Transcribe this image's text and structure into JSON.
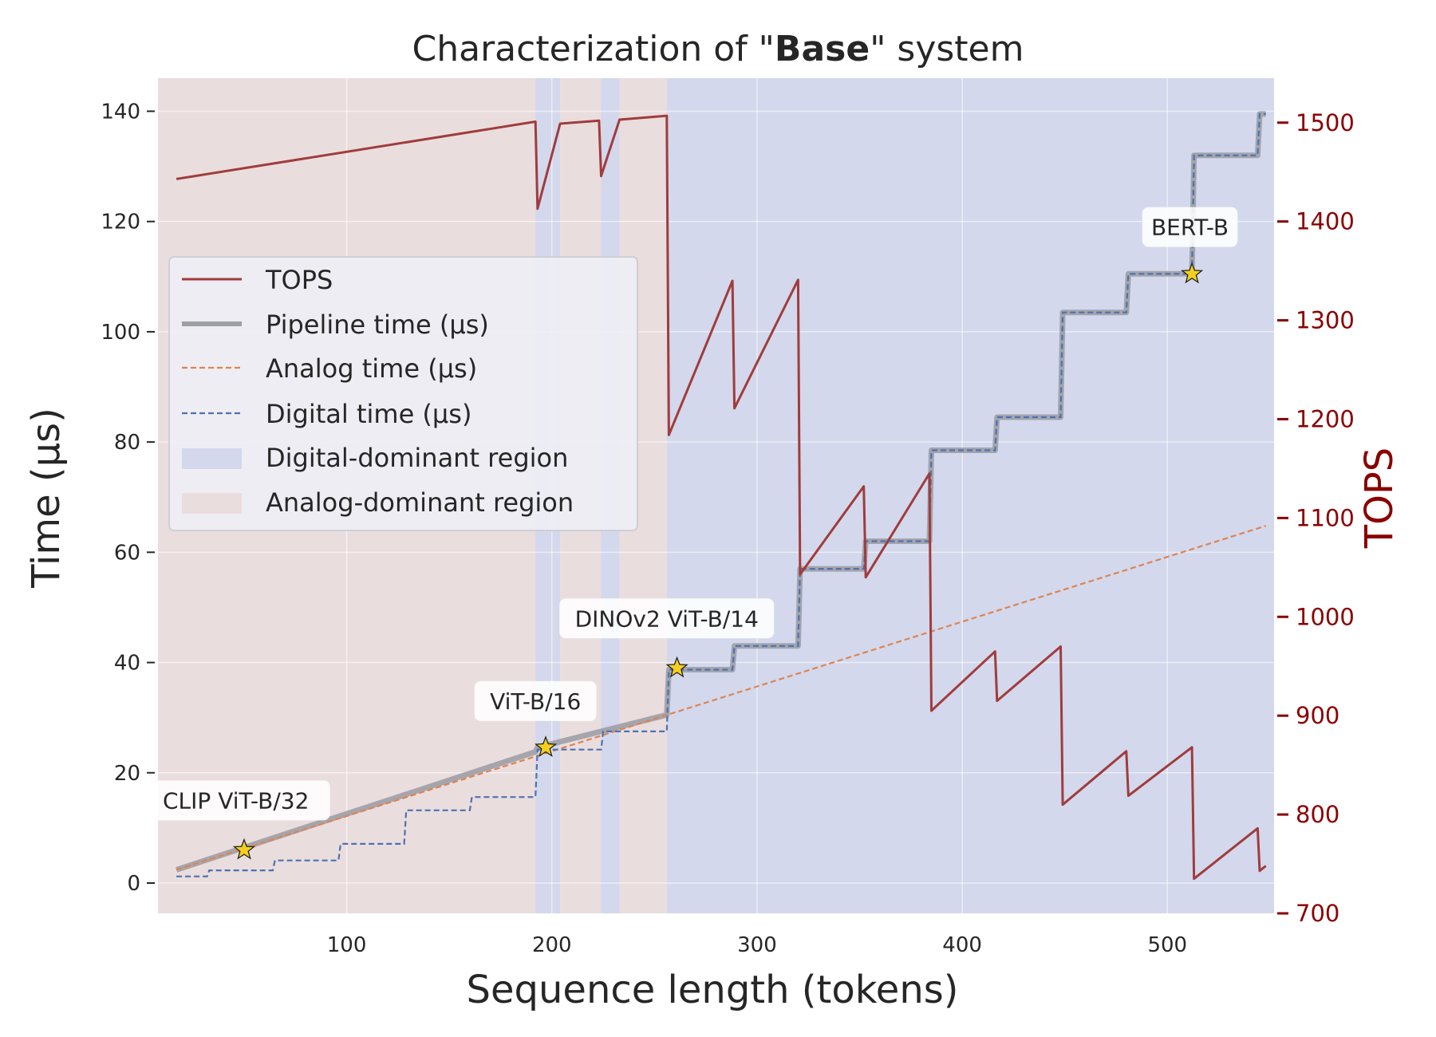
{
  "chart_data": {
    "type": "line",
    "title_prefix": "Characterization of \"",
    "title_bold": "Base",
    "title_suffix": "\" system",
    "xlabel": "Sequence length (tokens)",
    "ylabel": "Time (µs)",
    "y2label": "TOPS",
    "xlim": [
      8,
      552
    ],
    "ylim": [
      -5.5,
      146
    ],
    "y2lim": [
      700,
      1545
    ],
    "xticks": [
      "100",
      "200",
      "300",
      "400",
      "500"
    ],
    "xtick_values": [
      100,
      200,
      300,
      400,
      500
    ],
    "yticks": [
      "0",
      "20",
      "40",
      "60",
      "80",
      "100",
      "120",
      "140"
    ],
    "ytick_values": [
      0,
      20,
      40,
      60,
      80,
      100,
      120,
      140
    ],
    "y2ticks": [
      "700",
      "800",
      "900",
      "1000",
      "1100",
      "1200",
      "1300",
      "1400",
      "1500"
    ],
    "y2tick_values": [
      700,
      800,
      900,
      1000,
      1100,
      1200,
      1300,
      1400,
      1500
    ],
    "grid": true,
    "legend_position": "upper-left",
    "colors": {
      "tops": "#a03c3c",
      "pipeline": "#9e9ea6",
      "analog": "#dd8452",
      "digital": "#4c72b0",
      "digital_region": "#d3d8ec",
      "analog_region": "#eaddde",
      "plot_bg": "#eaeaf2",
      "right_axis": "#8b0000",
      "star": "#f5cf1f"
    },
    "legend": [
      {
        "key": "tops",
        "label": "TOPS"
      },
      {
        "key": "pipeline",
        "label": "Pipeline time (µs)"
      },
      {
        "key": "analog",
        "label": "Analog time (µs)"
      },
      {
        "key": "digital",
        "label": "Digital time (µs)"
      },
      {
        "key": "digital_region",
        "label": "Digital-dominant region"
      },
      {
        "key": "analog_region",
        "label": "Analog-dominant region"
      }
    ],
    "regions": [
      {
        "type": "analog",
        "x0": 8,
        "x1": 192
      },
      {
        "type": "digital",
        "x0": 192,
        "x1": 204
      },
      {
        "type": "analog",
        "x0": 204,
        "x1": 224
      },
      {
        "type": "digital",
        "x0": 224,
        "x1": 233
      },
      {
        "type": "analog",
        "x0": 233,
        "x1": 256
      },
      {
        "type": "digital",
        "x0": 256,
        "x1": 552
      }
    ],
    "series": [
      {
        "key": "tops",
        "name": "TOPS",
        "axis": "right",
        "points": [
          [
            17,
            1443
          ],
          [
            192,
            1501
          ],
          [
            193,
            1413
          ],
          [
            204,
            1499
          ],
          [
            223,
            1502
          ],
          [
            224,
            1446
          ],
          [
            233,
            1503
          ],
          [
            256,
            1507
          ],
          [
            257,
            1184
          ],
          [
            288,
            1340
          ],
          [
            289,
            1211
          ],
          [
            320,
            1341
          ],
          [
            321,
            1043
          ],
          [
            352,
            1132
          ],
          [
            353,
            1040
          ],
          [
            384,
            1145
          ],
          [
            385,
            905
          ],
          [
            416,
            965
          ],
          [
            417,
            915
          ],
          [
            448,
            970
          ],
          [
            449,
            810
          ],
          [
            480,
            864
          ],
          [
            481,
            819
          ],
          [
            512,
            868
          ],
          [
            513,
            735
          ],
          [
            544,
            786
          ],
          [
            545,
            743
          ],
          [
            548,
            748
          ]
        ]
      },
      {
        "key": "pipeline",
        "name": "Pipeline time (µs)",
        "axis": "left",
        "points": [
          [
            17,
            2.4
          ],
          [
            192,
            23.8
          ],
          [
            193,
            24.6
          ],
          [
            224,
            27.5
          ],
          [
            256,
            30.5
          ],
          [
            257,
            38.7
          ],
          [
            288,
            38.7
          ],
          [
            289,
            43
          ],
          [
            320,
            43
          ],
          [
            321,
            57
          ],
          [
            352,
            57
          ],
          [
            353,
            62
          ],
          [
            384,
            62
          ],
          [
            385,
            78.5
          ],
          [
            416,
            78.5
          ],
          [
            417,
            84.5
          ],
          [
            448,
            84.5
          ],
          [
            449,
            103.5
          ],
          [
            480,
            103.5
          ],
          [
            481,
            110.5
          ],
          [
            512,
            110.5
          ],
          [
            513,
            132
          ],
          [
            544,
            132
          ],
          [
            545,
            139.5
          ],
          [
            548,
            139.5
          ]
        ]
      },
      {
        "key": "analog",
        "name": "Analog time (µs)",
        "axis": "left",
        "points": [
          [
            17,
            2.4
          ],
          [
            548,
            64.8
          ]
        ]
      },
      {
        "key": "digital",
        "name": "Digital time (µs)",
        "axis": "left",
        "points": [
          [
            17,
            1.2
          ],
          [
            32,
            1.2
          ],
          [
            33,
            2.3
          ],
          [
            64,
            2.3
          ],
          [
            65,
            4.1
          ],
          [
            96,
            4.1
          ],
          [
            97,
            7.1
          ],
          [
            128,
            7.1
          ],
          [
            129,
            13.2
          ],
          [
            160,
            13.2
          ],
          [
            161,
            15.6
          ],
          [
            192,
            15.6
          ],
          [
            193,
            24.2
          ],
          [
            224,
            24.2
          ],
          [
            225,
            27.5
          ],
          [
            256,
            27.5
          ],
          [
            257,
            38.7
          ],
          [
            288,
            38.7
          ],
          [
            289,
            43
          ],
          [
            320,
            43
          ],
          [
            321,
            57
          ],
          [
            352,
            57
          ],
          [
            353,
            62
          ],
          [
            384,
            62
          ],
          [
            385,
            78.5
          ],
          [
            416,
            78.5
          ],
          [
            417,
            84.5
          ],
          [
            448,
            84.5
          ],
          [
            449,
            103.5
          ],
          [
            480,
            103.5
          ],
          [
            481,
            110.5
          ],
          [
            512,
            110.5
          ],
          [
            513,
            132
          ],
          [
            544,
            132
          ],
          [
            545,
            139.5
          ],
          [
            548,
            139.5
          ]
        ]
      }
    ],
    "annotations": [
      {
        "label": "CLIP ViT-B/32",
        "x": 50,
        "y": 6,
        "label_x": 46,
        "label_y": 15
      },
      {
        "label": "ViT-B/16",
        "x": 197,
        "y": 24.6,
        "label_x": 192,
        "label_y": 33
      },
      {
        "label": "DINOv2 ViT-B/14",
        "x": 261,
        "y": 39,
        "label_x": 256,
        "label_y": 48
      },
      {
        "label": "BERT-B",
        "x": 512,
        "y": 110.5,
        "label_x": 511,
        "label_y": 119
      }
    ]
  }
}
